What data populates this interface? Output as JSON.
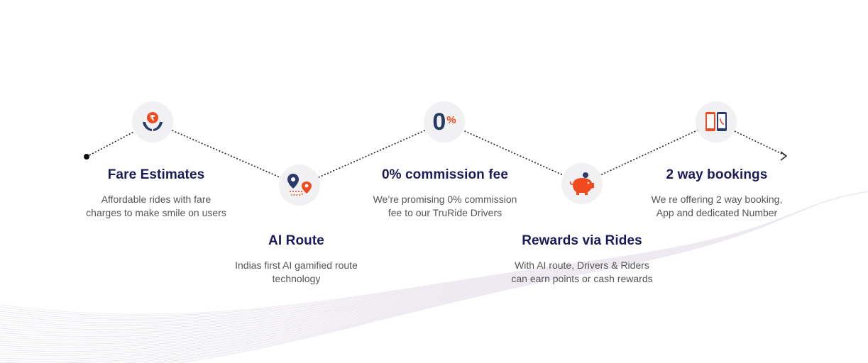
{
  "features": [
    {
      "title": "Fare Estimates",
      "description": "Affordable rides with fare charges to make smile on users"
    },
    {
      "title": "AI Route",
      "description": "Indias first AI gamified route technology"
    },
    {
      "title": "0% commission fee",
      "description": "We’re promising 0% commission fee to our TruRide Drivers"
    },
    {
      "title": "Rewards via Rides",
      "description": "With AI route, Drivers & Riders can earn points or cash rewards"
    },
    {
      "title": "2 way bookings",
      "description": "We re offering 2 way booking, App and dedicated Number"
    }
  ],
  "percent_icon": {
    "zero": "0",
    "percent": "%"
  },
  "colors": {
    "accent": "#f04a1e",
    "navy": "#1c1a5a",
    "icon_dark": "#2a3a6b",
    "circle_bg": "#f1f1f3"
  },
  "icons": [
    "rupee-hands-icon",
    "route-pin-icon",
    "percent-icon",
    "piggy-bank-icon",
    "phones-icon"
  ]
}
